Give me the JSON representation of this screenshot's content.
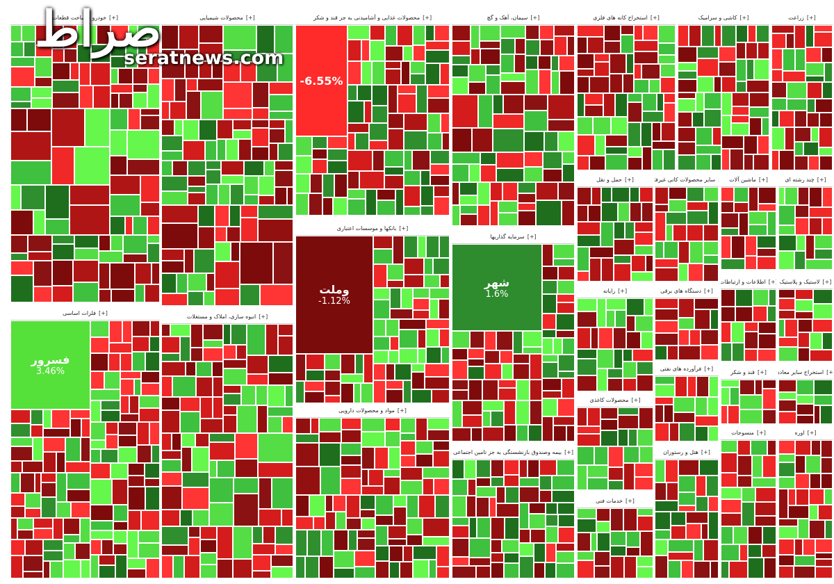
{
  "watermark": {
    "logo": "صراط",
    "site": "seratnews.com"
  },
  "toggle": "[+]",
  "sectors": [
    {
      "title": "خودرو و ساخت قطعات",
      "tiles": []
    },
    {
      "title": "محصولات شیمیایی",
      "tiles": []
    },
    {
      "title": "محصولات غذایی و آشامیدنی به جز قند و شکر",
      "tiles": [
        {
          "label": "-6.55%"
        }
      ]
    },
    {
      "title": "سیمان، آهک و گچ",
      "tiles": []
    },
    {
      "title": "استخراج کانه های فلزی",
      "tiles": []
    },
    {
      "title": "کاشی و سرامیک",
      "tiles": []
    },
    {
      "title": "زراعت",
      "tiles": []
    },
    {
      "title": "فلزات اساسی",
      "tiles": [
        {
          "label": "فسرور",
          "change": "3.46%"
        }
      ]
    },
    {
      "title": "انبوه سازی، املاک و مستغلات",
      "tiles": []
    },
    {
      "title": "بانکها و موسسات اعتباری",
      "tiles": [
        {
          "label": "وملت",
          "change": "-1.12%"
        }
      ]
    },
    {
      "title": "مواد و محصولات دارویی",
      "tiles": []
    },
    {
      "title": "سرمایه گذاریها",
      "tiles": [
        {
          "label": "شهر",
          "change": "1.6%"
        }
      ]
    },
    {
      "title": "بیمه وصندوق بازنشستگی به جز تامین اجتماعی",
      "tiles": []
    },
    {
      "title": "حمل و نقل",
      "tiles": []
    },
    {
      "title": "سایر محصولات کانی غیرفلزی",
      "tiles": []
    },
    {
      "title": "ماشین آلات",
      "tiles": []
    },
    {
      "title": "چند رشته ای",
      "tiles": []
    },
    {
      "title": "رایانه",
      "tiles": []
    },
    {
      "title": "دستگاه های برقی",
      "tiles": []
    },
    {
      "title": "اطلاعات و ارتباطات",
      "tiles": []
    },
    {
      "title": "لاستیک و پلاستیک",
      "tiles": []
    },
    {
      "title": "محصولات کاغذی",
      "tiles": []
    },
    {
      "title": "فرآورده های نفتی",
      "tiles": []
    },
    {
      "title": "قند و شکر",
      "tiles": []
    },
    {
      "title": "استخراج سایر معادن",
      "tiles": []
    },
    {
      "title": "خدمات فنی",
      "tiles": []
    },
    {
      "title": "هتل و رستوران",
      "tiles": []
    },
    {
      "title": "منسوجات",
      "tiles": []
    },
    {
      "title": "اوره",
      "tiles": []
    }
  ]
}
